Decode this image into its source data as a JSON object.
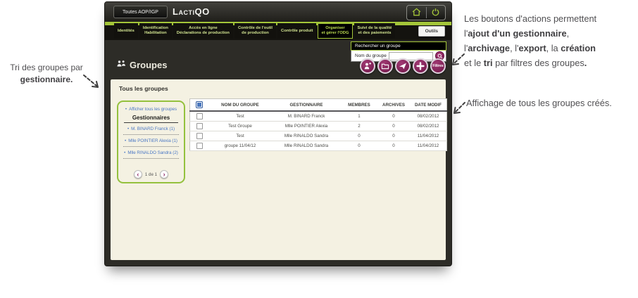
{
  "colors": {
    "accent_green": "#a4c639",
    "action_purple": "#8d2663",
    "link_blue": "#4a77c4",
    "panel_cream": "#f4f1e2",
    "window_dark": "#2d2c27"
  },
  "icons": {
    "home-icon": "svg",
    "power-icon": "svg",
    "groups-icon": "svg",
    "search-icon": "svg",
    "person-plus-icon": "svg",
    "folder-icon": "svg",
    "paper-plane-icon": "svg",
    "plus-icon": "svg",
    "chevron-left-icon": "‹",
    "chevron-right-icon": "›",
    "bullet-icon": "•",
    "select-all-checkbox-icon": "checkbox",
    "row-checkbox-icon": "checkbox"
  },
  "window": {
    "titlebar": {
      "scope_button_label": "Toutes AOP/IGP",
      "logo_prefix": "Lacti",
      "logo_suffix": "QO"
    },
    "nav": {
      "tabs": [
        {
          "id": "identites",
          "lines": [
            "Identités"
          ],
          "active": false
        },
        {
          "id": "identification-habilitation",
          "lines": [
            "Identification",
            "Habilitation"
          ],
          "active": false
        },
        {
          "id": "acces-en-ligne-declarations",
          "lines": [
            "Accès en ligne",
            "Déclarations de production"
          ],
          "active": false
        },
        {
          "id": "controle-outil-production",
          "lines": [
            "Contrôle de l'outil",
            "de production"
          ],
          "active": false
        },
        {
          "id": "controle-produit",
          "lines": [
            "Contrôle produit"
          ],
          "active": false
        },
        {
          "id": "organiser-gerer-odg",
          "lines": [
            "Organiser",
            "et gérer l'ODG"
          ],
          "active": true
        },
        {
          "id": "suivi-qualite-paiements",
          "lines": [
            "Suivi de la qualité",
            "et des paiements"
          ],
          "active": false
        }
      ],
      "tools_button_label": "Outils"
    },
    "search": {
      "title": "Rechercher un groupe",
      "field_label": "Nom du groupe",
      "value": ""
    },
    "page_title": "Groupes",
    "actions": [
      {
        "id": "add-gestionnaire",
        "icon": "person-plus-icon"
      },
      {
        "id": "archive",
        "icon": "folder-icon"
      },
      {
        "id": "export",
        "icon": "paper-plane-icon"
      },
      {
        "id": "create",
        "icon": "plus-icon"
      },
      {
        "id": "filters",
        "icon": "filters-label",
        "label": "Filtres"
      }
    ],
    "content": {
      "subtitle": "Tous les groupes",
      "sidebar": {
        "show_all_label": "Afficher tous les groupes",
        "heading": "Gestionnaires",
        "items": [
          "M. BINARD Franck (1)",
          "Mlle POINTIER Alexia (1)",
          "Mlle RINALDO Sandra (2)"
        ],
        "pagination": "1 de 1"
      },
      "table": {
        "headers": [
          "NOM DU GROUPE",
          "GESTIONNAIRE",
          "MEMBRES",
          "ARCHIVES",
          "DATE MODIF"
        ],
        "rows": [
          {
            "cells": [
              "Test",
              "M. BINARD Franck",
              "1",
              "0",
              "08/02/2012"
            ]
          },
          {
            "cells": [
              "Test Groupe",
              "Mlle POINTIER Alexia",
              "2",
              "0",
              "08/02/2012"
            ]
          },
          {
            "cells": [
              "Test",
              "Mlle RINALDO Sandra",
              "0",
              "0",
              "11/04/2012"
            ]
          },
          {
            "cells": [
              "groupe 11/04/12",
              "Mlle RINALDO Sandra",
              "0",
              "0",
              "11/04/2012"
            ]
          }
        ]
      }
    }
  },
  "annotations": {
    "left": {
      "segments": [
        {
          "t": "Tri des groupes par"
        },
        {
          "br": true
        },
        {
          "t": "gestionnaire.",
          "b": true
        }
      ]
    },
    "right_top": {
      "segments": [
        {
          "t": "Les boutons d'actions permettent"
        },
        {
          "br": true
        },
        {
          "t": "l'"
        },
        {
          "t": "ajout d'un gestionnaire",
          "b": true
        },
        {
          "t": ","
        },
        {
          "br": true
        },
        {
          "t": "l'"
        },
        {
          "t": "archivage",
          "b": true
        },
        {
          "t": ", l'"
        },
        {
          "t": "export",
          "b": true
        },
        {
          "t": ", la "
        },
        {
          "t": "création",
          "b": true
        },
        {
          "br": true
        },
        {
          "t": "et le "
        },
        {
          "t": "tri",
          "b": true
        },
        {
          "t": " par filtres des groupes"
        },
        {
          "t": ".",
          "b": true
        }
      ]
    },
    "right_bottom": {
      "segments": [
        {
          "t": "Affichage de tous les groupes créés."
        }
      ]
    }
  }
}
